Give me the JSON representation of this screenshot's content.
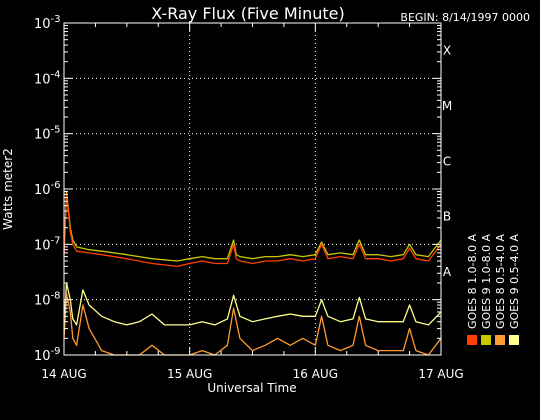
{
  "chart_data": {
    "type": "line",
    "title": "X-Ray Flux (Five Minute)",
    "begin_label": "BEGIN: 8/14/1997 0000",
    "ylabel": "Watts meter2",
    "xlabel": "Universal Time",
    "y_scale": "log",
    "ylim": [
      1e-09,
      0.001
    ],
    "y_ticks": [
      {
        "mant": "10",
        "exp": "-3"
      },
      {
        "mant": "10",
        "exp": "-4"
      },
      {
        "mant": "10",
        "exp": "-5"
      },
      {
        "mant": "10",
        "exp": "-6"
      },
      {
        "mant": "10",
        "exp": "-7"
      },
      {
        "mant": "10",
        "exp": "-8"
      },
      {
        "mant": "10",
        "exp": "-9"
      }
    ],
    "x_range_days": [
      14,
      17
    ],
    "x_ticks": [
      "14 AUG",
      "15 AUG",
      "16 AUG",
      "17 AUG"
    ],
    "class_labels": [
      "X",
      "M",
      "C",
      "B",
      "A"
    ],
    "grid": "dotted",
    "legend_position": "right-vertical",
    "legend": [
      {
        "text": "GOES 8  1.0-8.0 A",
        "color": "#ff4000"
      },
      {
        "text": "GOES 8  0.5-4.0 A",
        "color": "#ff9a30"
      },
      {
        "text": "GOES 9  1.0-8.0 A",
        "color": "#c8c800"
      },
      {
        "text": "GOES 9  0.5-4.0 A",
        "color": "#ffff90"
      }
    ],
    "series": [
      {
        "name": "GOES 9  1.0-8.0 A",
        "color": "#c8c800",
        "x": [
          14.0,
          14.02,
          14.05,
          14.07,
          14.1,
          14.2,
          14.3,
          14.5,
          14.7,
          14.9,
          15.0,
          15.1,
          15.2,
          15.3,
          15.35,
          15.37,
          15.4,
          15.5,
          15.6,
          15.7,
          15.8,
          15.9,
          16.0,
          16.05,
          16.1,
          16.2,
          16.3,
          16.35,
          16.4,
          16.5,
          16.6,
          16.7,
          16.75,
          16.8,
          16.9,
          17.0
        ],
        "y": [
          7e-08,
          9e-07,
          2e-07,
          1.2e-07,
          9e-08,
          8e-08,
          7.5e-08,
          6.5e-08,
          5.5e-08,
          5e-08,
          5.5e-08,
          6e-08,
          5.5e-08,
          5.5e-08,
          1.2e-07,
          6.5e-08,
          6e-08,
          5.5e-08,
          6e-08,
          6e-08,
          6.5e-08,
          6e-08,
          6.5e-08,
          1.1e-07,
          6.5e-08,
          7e-08,
          6.5e-08,
          1.2e-07,
          6.5e-08,
          6.5e-08,
          6e-08,
          6.5e-08,
          1e-07,
          6.5e-08,
          6e-08,
          1.2e-07
        ]
      },
      {
        "name": "GOES 8  1.0-8.0 A",
        "color": "#ff4000",
        "x": [
          14.0,
          14.02,
          14.05,
          14.07,
          14.1,
          14.2,
          14.3,
          14.5,
          14.7,
          14.9,
          15.0,
          15.1,
          15.2,
          15.3,
          15.35,
          15.37,
          15.4,
          15.5,
          15.6,
          15.7,
          15.8,
          15.9,
          16.0,
          16.05,
          16.1,
          16.2,
          16.3,
          16.35,
          16.4,
          16.5,
          16.6,
          16.7,
          16.75,
          16.8,
          16.9,
          17.0
        ],
        "y": [
          6e-08,
          8e-07,
          1.7e-07,
          1e-07,
          7.5e-08,
          7e-08,
          6.5e-08,
          5.5e-08,
          4.5e-08,
          4e-08,
          4.5e-08,
          5e-08,
          4.5e-08,
          4.5e-08,
          1e-07,
          5.5e-08,
          5e-08,
          4.5e-08,
          5e-08,
          5e-08,
          5.5e-08,
          5e-08,
          5.5e-08,
          1e-07,
          5.5e-08,
          6e-08,
          5.5e-08,
          1e-07,
          5.5e-08,
          5.5e-08,
          5e-08,
          5.5e-08,
          8.5e-08,
          5.5e-08,
          5e-08,
          1e-07
        ]
      },
      {
        "name": "GOES 9  0.5-4.0 A",
        "color": "#ffff90",
        "x": [
          14.0,
          14.02,
          14.05,
          14.07,
          14.1,
          14.15,
          14.2,
          14.3,
          14.4,
          14.5,
          14.6,
          14.7,
          14.8,
          14.9,
          15.0,
          15.1,
          15.2,
          15.3,
          15.35,
          15.4,
          15.5,
          15.6,
          15.7,
          15.8,
          15.9,
          16.0,
          16.05,
          16.1,
          16.2,
          16.3,
          16.35,
          16.4,
          16.5,
          16.6,
          16.7,
          16.75,
          16.8,
          16.9,
          17.0
        ],
        "y": [
          3e-09,
          2e-08,
          1e-08,
          4.5e-09,
          3.5e-09,
          1.5e-08,
          8e-09,
          5e-09,
          4e-09,
          3.5e-09,
          4e-09,
          5.5e-09,
          3.5e-09,
          3.5e-09,
          3.5e-09,
          4e-09,
          3.5e-09,
          4.5e-09,
          1.2e-08,
          5e-09,
          4e-09,
          4.5e-09,
          5e-09,
          5.5e-09,
          5e-09,
          5e-09,
          1e-08,
          5e-09,
          4e-09,
          4.5e-09,
          1.1e-08,
          4.5e-09,
          4e-09,
          4e-09,
          4e-09,
          8e-09,
          4e-09,
          3.5e-09,
          6e-09
        ]
      },
      {
        "name": "GOES 8  0.5-4.0 A",
        "color": "#ff9a30",
        "x": [
          14.0,
          14.02,
          14.05,
          14.07,
          14.1,
          14.15,
          14.2,
          14.3,
          14.4,
          14.5,
          14.6,
          14.7,
          14.8,
          14.9,
          15.0,
          15.1,
          15.2,
          15.3,
          15.35,
          15.4,
          15.5,
          15.6,
          15.7,
          15.8,
          15.9,
          16.0,
          16.05,
          16.1,
          16.2,
          16.3,
          16.35,
          16.4,
          16.5,
          16.6,
          16.7,
          16.75,
          16.8,
          16.9,
          17.0
        ],
        "y": [
          2e-09,
          1.3e-08,
          6e-09,
          2e-09,
          1.5e-09,
          8e-09,
          3e-09,
          1.2e-09,
          1e-09,
          1e-09,
          1e-09,
          1.5e-09,
          1e-09,
          1e-09,
          1e-09,
          1.2e-09,
          1e-09,
          1.5e-09,
          7e-09,
          2e-09,
          1.2e-09,
          1.5e-09,
          2e-09,
          1.5e-09,
          2e-09,
          1.5e-09,
          5e-09,
          1.5e-09,
          1.2e-09,
          1.5e-09,
          5e-09,
          1.5e-09,
          1.2e-09,
          1.2e-09,
          1.2e-09,
          3e-09,
          1.2e-09,
          1e-09,
          2e-09
        ]
      }
    ]
  }
}
